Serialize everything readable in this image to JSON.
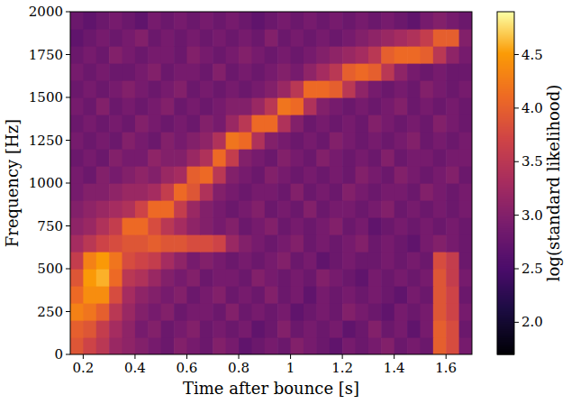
{
  "chart_data": {
    "type": "heatmap",
    "x_label": "Time after bounce [s]",
    "y_label": "Frequency [Hz]",
    "xlim": [
      0.15,
      1.7
    ],
    "ylim": [
      0,
      2000
    ],
    "xticks": [
      0.2,
      0.4,
      0.6,
      0.8,
      1.0,
      1.2,
      1.4,
      1.6
    ],
    "yticks": [
      0,
      250,
      500,
      750,
      1000,
      1250,
      1500,
      1750,
      2000
    ],
    "x_bins": [
      0.15,
      0.2,
      0.25,
      0.3,
      0.35,
      0.4,
      0.45,
      0.5,
      0.55,
      0.6,
      0.65,
      0.7,
      0.75,
      0.8,
      0.85,
      0.9,
      0.95,
      1.0,
      1.05,
      1.1,
      1.15,
      1.2,
      1.25,
      1.3,
      1.35,
      1.4,
      1.45,
      1.5,
      1.55,
      1.6,
      1.65,
      1.7
    ],
    "y_bins": [
      0,
      100,
      200,
      300,
      400,
      500,
      600,
      700,
      800,
      900,
      1000,
      1100,
      1200,
      1300,
      1400,
      1500,
      1600,
      1700,
      1800,
      1900,
      2000
    ],
    "values": [
      [
        3.9,
        3.7,
        3.5,
        3.2,
        3.1,
        3.0,
        2.9,
        2.8,
        3.0,
        2.9,
        2.8,
        3.0,
        2.9,
        2.7,
        2.8,
        2.9,
        2.8,
        3.0,
        2.9,
        2.8,
        2.7,
        2.9,
        2.8,
        2.9,
        3.0,
        2.8,
        2.9,
        2.8,
        4.0,
        3.8,
        2.9
      ],
      [
        4.0,
        3.9,
        3.6,
        3.3,
        3.1,
        2.9,
        3.0,
        2.8,
        2.9,
        3.0,
        2.8,
        2.9,
        2.8,
        2.9,
        2.7,
        2.8,
        3.0,
        2.8,
        2.9,
        2.8,
        2.9,
        2.7,
        2.8,
        3.0,
        2.8,
        2.9,
        2.7,
        2.9,
        4.0,
        3.8,
        2.8
      ],
      [
        4.3,
        4.2,
        4.0,
        3.5,
        3.2,
        3.0,
        2.9,
        3.0,
        2.8,
        2.9,
        2.9,
        2.8,
        3.0,
        2.8,
        2.9,
        2.8,
        2.9,
        2.7,
        2.8,
        2.9,
        2.8,
        3.0,
        2.9,
        2.8,
        2.7,
        2.9,
        2.8,
        2.9,
        3.9,
        3.7,
        2.9
      ],
      [
        4.1,
        4.4,
        4.4,
        3.8,
        3.3,
        3.1,
        3.0,
        2.9,
        3.0,
        2.8,
        2.9,
        3.0,
        2.8,
        2.9,
        2.8,
        3.0,
        2.8,
        2.9,
        2.7,
        2.9,
        2.8,
        2.9,
        2.8,
        2.9,
        2.8,
        2.7,
        2.9,
        2.8,
        3.9,
        3.7,
        2.8
      ],
      [
        3.9,
        4.5,
        4.6,
        4.1,
        3.5,
        3.4,
        3.2,
        3.0,
        2.9,
        3.0,
        2.8,
        2.9,
        2.9,
        2.8,
        3.0,
        2.9,
        2.8,
        2.9,
        2.8,
        3.0,
        2.9,
        2.8,
        2.7,
        2.9,
        2.8,
        2.9,
        2.8,
        2.9,
        3.9,
        3.6,
        2.9
      ],
      [
        3.6,
        4.3,
        4.5,
        4.2,
        3.8,
        3.7,
        3.6,
        3.3,
        3.1,
        2.9,
        3.0,
        2.9,
        2.8,
        2.9,
        2.8,
        2.9,
        3.0,
        2.8,
        2.9,
        2.7,
        2.8,
        2.9,
        2.8,
        2.8,
        2.9,
        2.8,
        2.9,
        2.8,
        3.8,
        3.6,
        2.8
      ],
      [
        3.3,
        3.5,
        3.7,
        3.8,
        3.9,
        3.9,
        4.0,
        3.9,
        3.9,
        3.8,
        3.8,
        3.7,
        3.2,
        3.0,
        2.9,
        2.8,
        2.9,
        3.0,
        2.8,
        2.9,
        2.8,
        2.9,
        3.0,
        2.8,
        2.9,
        2.8,
        2.7,
        2.9,
        3.0,
        2.9,
        2.8
      ],
      [
        3.1,
        3.2,
        3.4,
        3.6,
        4.1,
        4.1,
        3.8,
        3.5,
        3.3,
        3.1,
        3.0,
        2.9,
        3.0,
        2.8,
        2.9,
        3.0,
        2.8,
        2.9,
        2.8,
        2.9,
        3.0,
        2.8,
        2.9,
        2.7,
        2.8,
        2.9,
        2.8,
        2.9,
        2.8,
        2.9,
        2.8
      ],
      [
        3.0,
        3.1,
        3.2,
        3.3,
        3.4,
        3.7,
        4.1,
        4.1,
        3.6,
        3.2,
        3.0,
        2.9,
        2.8,
        2.9,
        3.0,
        2.8,
        2.9,
        2.8,
        3.0,
        2.8,
        2.9,
        2.9,
        2.8,
        2.9,
        3.0,
        2.8,
        2.9,
        2.8,
        2.9,
        2.8,
        2.9
      ],
      [
        2.9,
        3.0,
        3.0,
        3.1,
        3.2,
        3.2,
        3.3,
        3.6,
        4.1,
        3.9,
        3.4,
        3.0,
        2.9,
        2.8,
        2.9,
        2.9,
        2.8,
        3.0,
        2.8,
        2.9,
        2.8,
        3.0,
        2.9,
        2.8,
        2.9,
        2.9,
        2.8,
        3.0,
        2.9,
        2.8,
        2.9
      ],
      [
        2.9,
        2.8,
        3.0,
        2.9,
        3.0,
        3.1,
        3.0,
        3.2,
        3.3,
        4.0,
        4.1,
        3.5,
        3.0,
        2.9,
        2.8,
        3.0,
        2.9,
        2.8,
        2.9,
        2.8,
        2.9,
        2.8,
        3.0,
        2.9,
        2.8,
        3.0,
        2.9,
        2.8,
        2.9,
        3.0,
        2.8
      ],
      [
        2.8,
        2.9,
        2.8,
        3.0,
        2.9,
        2.9,
        3.1,
        3.0,
        3.0,
        3.2,
        3.4,
        4.1,
        3.6,
        3.0,
        2.9,
        2.8,
        3.0,
        2.9,
        2.8,
        3.0,
        2.9,
        2.8,
        2.9,
        2.8,
        3.0,
        2.8,
        2.9,
        2.9,
        2.8,
        2.9,
        2.9
      ],
      [
        2.9,
        2.8,
        2.9,
        2.8,
        3.0,
        2.9,
        2.8,
        3.0,
        2.9,
        3.0,
        3.1,
        3.4,
        4.2,
        4.1,
        3.4,
        3.0,
        2.9,
        2.8,
        2.9,
        2.8,
        3.0,
        2.9,
        2.8,
        2.9,
        2.8,
        2.9,
        3.0,
        2.8,
        2.9,
        2.8,
        2.9
      ],
      [
        2.8,
        2.9,
        2.8,
        2.9,
        2.8,
        3.0,
        2.9,
        2.8,
        2.9,
        2.8,
        3.0,
        2.9,
        3.2,
        3.5,
        4.1,
        4.1,
        3.4,
        3.0,
        2.8,
        2.9,
        2.8,
        2.9,
        2.8,
        3.0,
        2.9,
        2.8,
        2.9,
        2.8,
        3.0,
        2.9,
        2.8
      ],
      [
        2.9,
        2.8,
        3.0,
        2.8,
        2.9,
        2.8,
        2.9,
        3.0,
        2.8,
        2.9,
        2.8,
        2.9,
        3.0,
        3.0,
        3.2,
        3.5,
        4.2,
        4.1,
        3.4,
        3.0,
        2.9,
        2.8,
        2.9,
        2.8,
        2.9,
        3.0,
        2.8,
        2.9,
        2.8,
        2.9,
        2.8
      ],
      [
        2.8,
        2.9,
        2.8,
        2.9,
        3.0,
        2.9,
        2.8,
        2.9,
        3.0,
        2.8,
        2.9,
        2.8,
        2.9,
        2.8,
        2.9,
        3.0,
        3.2,
        3.5,
        4.1,
        4.1,
        4.0,
        3.5,
        3.1,
        2.9,
        2.8,
        2.9,
        2.8,
        3.0,
        2.9,
        2.8,
        2.9
      ],
      [
        2.9,
        2.8,
        2.9,
        2.8,
        2.8,
        2.9,
        3.0,
        2.8,
        2.9,
        2.9,
        2.8,
        3.0,
        2.8,
        2.9,
        2.8,
        2.9,
        3.0,
        2.9,
        3.1,
        3.3,
        3.5,
        4.0,
        4.1,
        4.0,
        3.5,
        3.1,
        2.9,
        2.8,
        2.9,
        2.8,
        2.8
      ],
      [
        2.8,
        2.9,
        2.8,
        3.0,
        2.9,
        2.8,
        2.9,
        2.9,
        2.8,
        3.0,
        2.9,
        2.8,
        2.9,
        3.0,
        2.9,
        2.8,
        2.9,
        2.8,
        2.9,
        3.0,
        3.1,
        3.2,
        3.3,
        3.5,
        4.0,
        4.1,
        4.1,
        4.0,
        3.5,
        3.1,
        2.9
      ],
      [
        2.7,
        2.8,
        2.9,
        2.8,
        2.9,
        3.0,
        2.8,
        2.9,
        2.8,
        2.9,
        2.8,
        2.9,
        2.8,
        2.9,
        2.8,
        3.0,
        2.8,
        2.9,
        2.8,
        2.9,
        2.8,
        2.9,
        3.0,
        3.1,
        3.2,
        3.3,
        3.4,
        3.6,
        4.0,
        4.0,
        3.0
      ],
      [
        2.8,
        2.7,
        2.8,
        2.9,
        2.8,
        2.7,
        2.9,
        2.8,
        2.9,
        2.8,
        2.9,
        2.8,
        2.9,
        2.8,
        2.7,
        2.8,
        2.9,
        2.8,
        2.9,
        2.8,
        2.9,
        2.8,
        2.9,
        2.8,
        2.9,
        2.8,
        2.7,
        2.9,
        3.0,
        2.9,
        2.8
      ]
    ],
    "colorbar": {
      "label": "log(standard likelihood)",
      "range": [
        1.7,
        4.9
      ],
      "ticks": [
        {
          "value": 2,
          "label": "2.0"
        },
        2.5,
        {
          "value": 3,
          "label": "3.0"
        },
        3.5,
        {
          "value": 4,
          "label": "4.0"
        },
        4.5
      ]
    }
  }
}
